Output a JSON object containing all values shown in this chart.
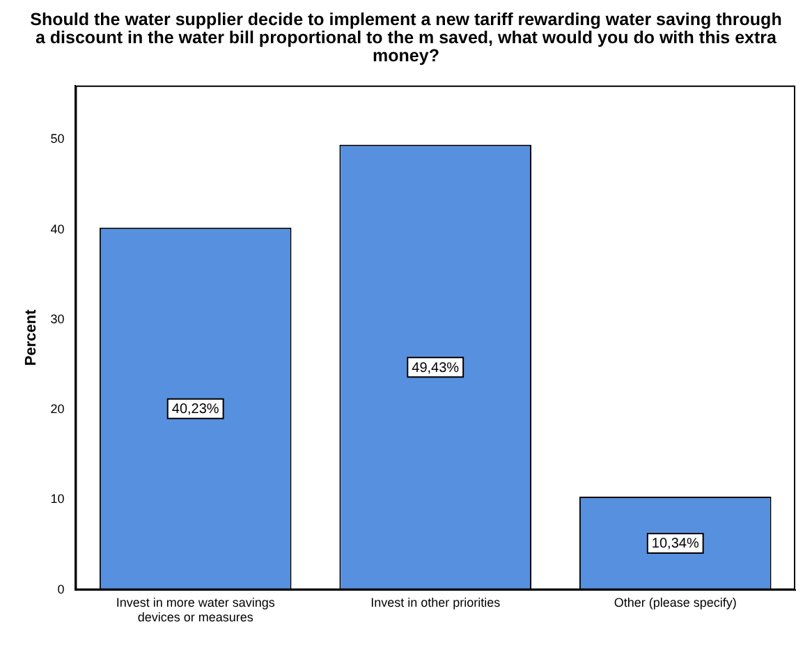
{
  "chart_data": {
    "type": "bar",
    "title": "Should the water supplier decide to implement a new tariff rewarding water saving through a discount in the water bill proportional to the m saved, what would you do with this extra money?",
    "ylabel": "Percent",
    "categories": [
      "Invest in more water savings devices or measures",
      "Invest in other priorities",
      "Other (please specify)"
    ],
    "values": [
      40.23,
      49.43,
      10.34
    ],
    "value_labels": [
      "40,23%",
      "49,43%",
      "10,34%"
    ],
    "color": "#5890e0",
    "ylim": [
      0,
      56
    ],
    "yticks": [
      0,
      10,
      20,
      30,
      40,
      50
    ],
    "grid": false,
    "legend": false
  }
}
